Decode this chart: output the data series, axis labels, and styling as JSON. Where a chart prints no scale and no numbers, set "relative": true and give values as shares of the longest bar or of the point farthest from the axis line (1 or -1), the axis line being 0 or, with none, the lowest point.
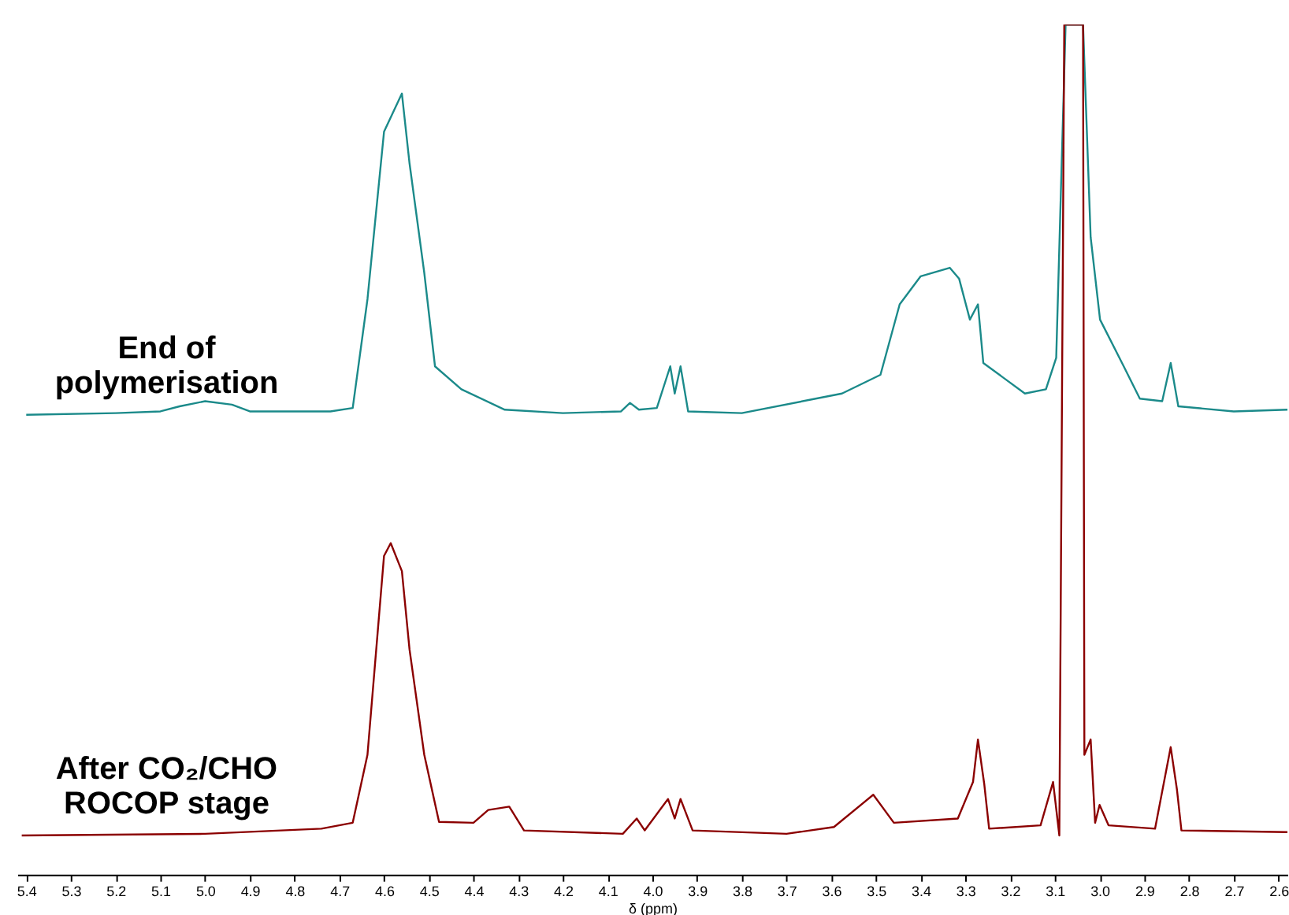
{
  "chart_data": {
    "type": "line",
    "relative": true,
    "xlabel": "δ (ppm)",
    "xlim": [
      5.42,
      2.58
    ],
    "xticks": [
      5.4,
      5.3,
      5.2,
      5.1,
      {
        "value": 5.0,
        "label": "5.0"
      },
      4.9,
      4.8,
      4.7,
      4.6,
      4.5,
      4.4,
      4.3,
      4.2,
      4.1,
      {
        "value": 4.0,
        "label": "4.0"
      },
      3.9,
      3.8,
      3.7,
      3.6,
      3.5,
      3.4,
      3.3,
      3.2,
      3.1,
      {
        "value": 3.0,
        "label": "3.0"
      },
      2.9,
      2.8,
      2.7,
      2.6
    ],
    "grid": false,
    "line_style": "solid",
    "series": [
      {
        "name": "End of\npolymerisation",
        "color": "#1b8a8a",
        "x": [
          5.4,
          5.2,
          5.1,
          5.057,
          5.0,
          4.94,
          4.9,
          4.8,
          4.72,
          4.67,
          4.637,
          4.6,
          4.56,
          4.543,
          4.51,
          4.486,
          4.427,
          4.33,
          4.2,
          4.07,
          4.05,
          4.03,
          3.99,
          3.96,
          3.95,
          3.937,
          3.92,
          3.8,
          3.576,
          3.49,
          3.447,
          3.4,
          3.335,
          3.314,
          3.29,
          3.272,
          3.26,
          3.167,
          3.12,
          3.097,
          3.076,
          3.037,
          3.02,
          2.999,
          2.946,
          2.91,
          2.86,
          2.841,
          2.824,
          2.7,
          2.58
        ],
        "values": [
          0.541,
          0.543,
          0.545,
          0.551,
          0.557,
          0.553,
          0.545,
          0.545,
          0.545,
          0.549,
          0.677,
          0.874,
          0.919,
          0.837,
          0.708,
          0.598,
          0.571,
          0.547,
          0.543,
          0.545,
          0.555,
          0.547,
          0.549,
          0.598,
          0.566,
          0.598,
          0.545,
          0.543,
          0.566,
          0.588,
          0.671,
          0.704,
          0.714,
          0.701,
          0.653,
          0.671,
          0.602,
          0.566,
          0.571,
          0.608,
          1,
          1,
          0.75,
          0.653,
          0.598,
          0.56,
          0.557,
          0.602,
          0.551,
          0.545,
          0.547
        ]
      },
      {
        "name": "After CO₂/CHO\nROCOP stage",
        "color": "#8b0000",
        "x": [
          5.41,
          5.0,
          4.74,
          4.67,
          4.637,
          4.6,
          4.585,
          4.56,
          4.543,
          4.51,
          4.477,
          4.4,
          4.367,
          4.32,
          4.287,
          4.066,
          4.035,
          4.017,
          3.965,
          3.95,
          3.937,
          3.91,
          3.7,
          3.594,
          3.506,
          3.46,
          3.317,
          3.283,
          3.272,
          3.258,
          3.247,
          3.132,
          3.104,
          3.09,
          3.079,
          3.037,
          3.034,
          3.02,
          3.01,
          3.0,
          2.98,
          2.876,
          2.841,
          2.827,
          2.817,
          2.58
        ],
        "values": [
          0.046,
          0.048,
          0.054,
          0.061,
          0.141,
          0.375,
          0.39,
          0.357,
          0.265,
          0.141,
          0.062,
          0.061,
          0.076,
          0.08,
          0.052,
          0.048,
          0.066,
          0.052,
          0.089,
          0.066,
          0.089,
          0.052,
          0.048,
          0.056,
          0.094,
          0.061,
          0.066,
          0.109,
          0.159,
          0.107,
          0.054,
          0.058,
          0.109,
          0.046,
          1,
          1,
          0.141,
          0.159,
          0.061,
          0.082,
          0.058,
          0.054,
          0.15,
          0.1,
          0.052,
          0.05
        ]
      }
    ]
  }
}
